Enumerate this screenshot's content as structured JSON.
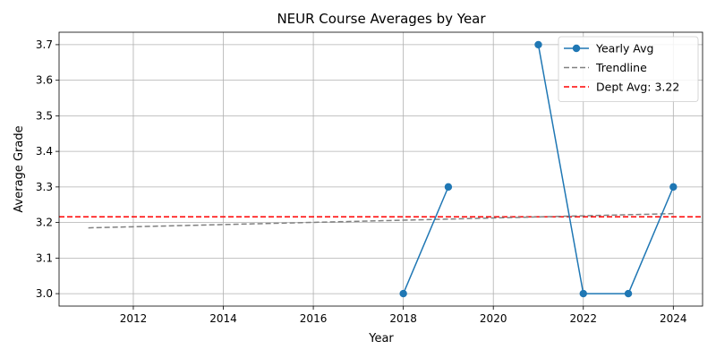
{
  "chart_data": {
    "type": "line",
    "title": "NEUR Course Averages by Year",
    "xlabel": "Year",
    "ylabel": "Average Grade",
    "xlim": [
      2010.35,
      2024.65
    ],
    "ylim": [
      2.965,
      3.735
    ],
    "xticks": [
      2012,
      2014,
      2016,
      2018,
      2020,
      2022,
      2024
    ],
    "yticks": [
      3.0,
      3.1,
      3.2,
      3.3,
      3.4,
      3.5,
      3.6,
      3.7
    ],
    "grid": true,
    "legend_position": "top-right",
    "series": [
      {
        "name": "Yearly Avg",
        "color": "#1f77b4",
        "style": "solid",
        "marker": "circle",
        "segments": [
          [
            {
              "x": 2018,
              "y": 3.0
            },
            {
              "x": 2019,
              "y": 3.3
            }
          ],
          [
            {
              "x": 2021,
              "y": 3.7
            },
            {
              "x": 2022,
              "y": 3.0
            },
            {
              "x": 2023,
              "y": 3.0
            },
            {
              "x": 2024,
              "y": 3.3
            }
          ]
        ]
      },
      {
        "name": "Trendline",
        "color": "#808080",
        "style": "dashed",
        "points": [
          {
            "x": 2011,
            "y": 3.185
          },
          {
            "x": 2024,
            "y": 3.225
          }
        ]
      }
    ],
    "reference_lines": [
      {
        "name": "Dept Avg: 3.22",
        "color": "#ff0000",
        "style": "dashed",
        "y": 3.216
      }
    ]
  }
}
